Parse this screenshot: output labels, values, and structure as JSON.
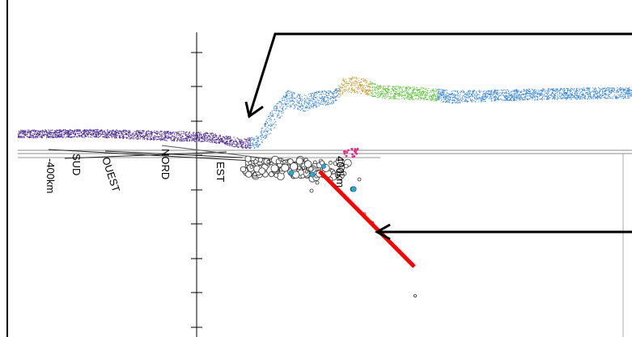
{
  "labels": {
    "sud": "SUD",
    "ouest": "OUEST",
    "nord": "NORD",
    "est": "EST",
    "dist_left": "-400km",
    "dist_right": "400km"
  },
  "colors": {
    "topo_purple": "#4b2b8f",
    "topo_blue": "#3a86d8",
    "topo_gold": "#c59a2a",
    "topo_green": "#5cc43a",
    "seismic_fill": "#ffffff",
    "seismic_deep": "#2fa8d8",
    "magenta_events": "#e0308a",
    "slab_line": "#ff0000",
    "arrow": "#000000"
  },
  "icons": {
    "upper_arrow": "arrow-icon",
    "lower_arrow": "arrow-icon"
  }
}
